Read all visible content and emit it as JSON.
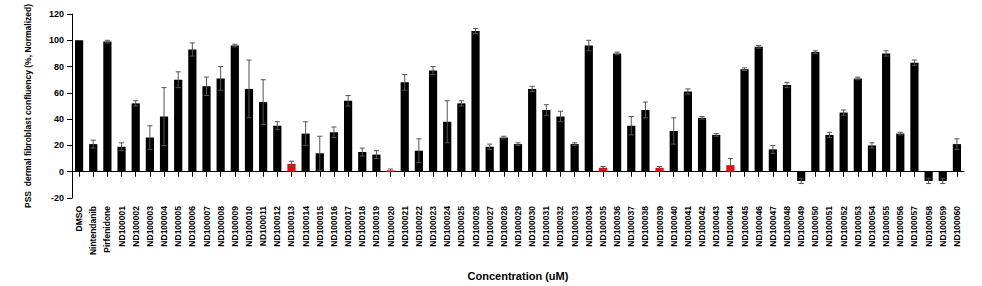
{
  "chart_data": {
    "type": "bar",
    "y_label": "PSS  dermal fibroblast confluency (%, Normalized)",
    "x_label": "Concentration (uM)",
    "categories": [
      "DMSO",
      "Nintendanib",
      "Pirfenidone",
      "ND100001",
      "ND100002",
      "ND100003",
      "ND100004",
      "ND100005",
      "ND100006",
      "ND100007",
      "ND100008",
      "ND100009",
      "ND100010",
      "ND100011",
      "ND100012",
      "ND100013",
      "ND100014",
      "ND100015",
      "ND100016",
      "ND100017",
      "ND100018",
      "ND100019",
      "ND100020",
      "ND100021",
      "ND100022",
      "ND100023",
      "ND100024",
      "ND100025",
      "ND100026",
      "ND100027",
      "ND100028",
      "ND100029",
      "ND100030",
      "ND100031",
      "ND100032",
      "ND100033",
      "ND100034",
      "ND100035",
      "ND100036",
      "ND100037",
      "ND100038",
      "ND100039",
      "ND100040",
      "ND100041",
      "ND100042",
      "ND100043",
      "ND100044",
      "ND100045",
      "ND100046",
      "ND100047",
      "ND100048",
      "ND100049",
      "ND100050",
      "ND100051",
      "ND100052",
      "ND100053",
      "ND100054",
      "ND100055",
      "ND100056",
      "ND100057",
      "ND100058",
      "ND100059",
      "ND100060"
    ],
    "values": [
      100,
      21,
      99,
      19,
      52,
      26,
      42,
      70,
      93,
      65,
      71,
      96,
      63,
      53,
      35,
      6,
      29,
      14,
      30,
      54,
      15,
      13,
      1,
      68,
      16,
      77,
      38,
      52,
      107,
      19,
      26,
      21,
      63,
      47,
      42,
      21,
      96,
      3,
      90,
      35,
      47,
      3,
      31,
      61,
      41,
      28,
      5,
      78,
      95,
      17,
      66,
      -7,
      91,
      28,
      45,
      71,
      20,
      90,
      29,
      83,
      -7,
      -7,
      21
    ],
    "errors": [
      0,
      3,
      1,
      3,
      2,
      9,
      22,
      6,
      5,
      7,
      9,
      1,
      22,
      17,
      3,
      2,
      9,
      13,
      4,
      4,
      3,
      3,
      1,
      6,
      9,
      3,
      16,
      2,
      2,
      2,
      1,
      1,
      2,
      4,
      4,
      1,
      4,
      1,
      1,
      7,
      6,
      1,
      10,
      2,
      1,
      1,
      5,
      1,
      1,
      3,
      2,
      2,
      1,
      2,
      2,
      1,
      2,
      2,
      1,
      2,
      2,
      2,
      4
    ],
    "colors": [
      "#000000",
      "#000000",
      "#000000",
      "#000000",
      "#000000",
      "#000000",
      "#000000",
      "#000000",
      "#000000",
      "#000000",
      "#000000",
      "#000000",
      "#000000",
      "#000000",
      "#000000",
      "#ff0000",
      "#000000",
      "#000000",
      "#000000",
      "#000000",
      "#000000",
      "#000000",
      "#ff0000",
      "#000000",
      "#000000",
      "#000000",
      "#000000",
      "#000000",
      "#000000",
      "#000000",
      "#000000",
      "#000000",
      "#000000",
      "#000000",
      "#000000",
      "#000000",
      "#000000",
      "#ff0000",
      "#000000",
      "#000000",
      "#000000",
      "#ff0000",
      "#000000",
      "#000000",
      "#000000",
      "#000000",
      "#ff0000",
      "#000000",
      "#000000",
      "#000000",
      "#000000",
      "#000000",
      "#000000",
      "#000000",
      "#000000",
      "#000000",
      "#000000",
      "#000000",
      "#000000",
      "#000000",
      "#000000",
      "#000000",
      "#000000"
    ],
    "ylim": [
      -20,
      120
    ],
    "yticks": [
      -20,
      0,
      20,
      40,
      60,
      80,
      100,
      120
    ],
    "grid": false
  }
}
